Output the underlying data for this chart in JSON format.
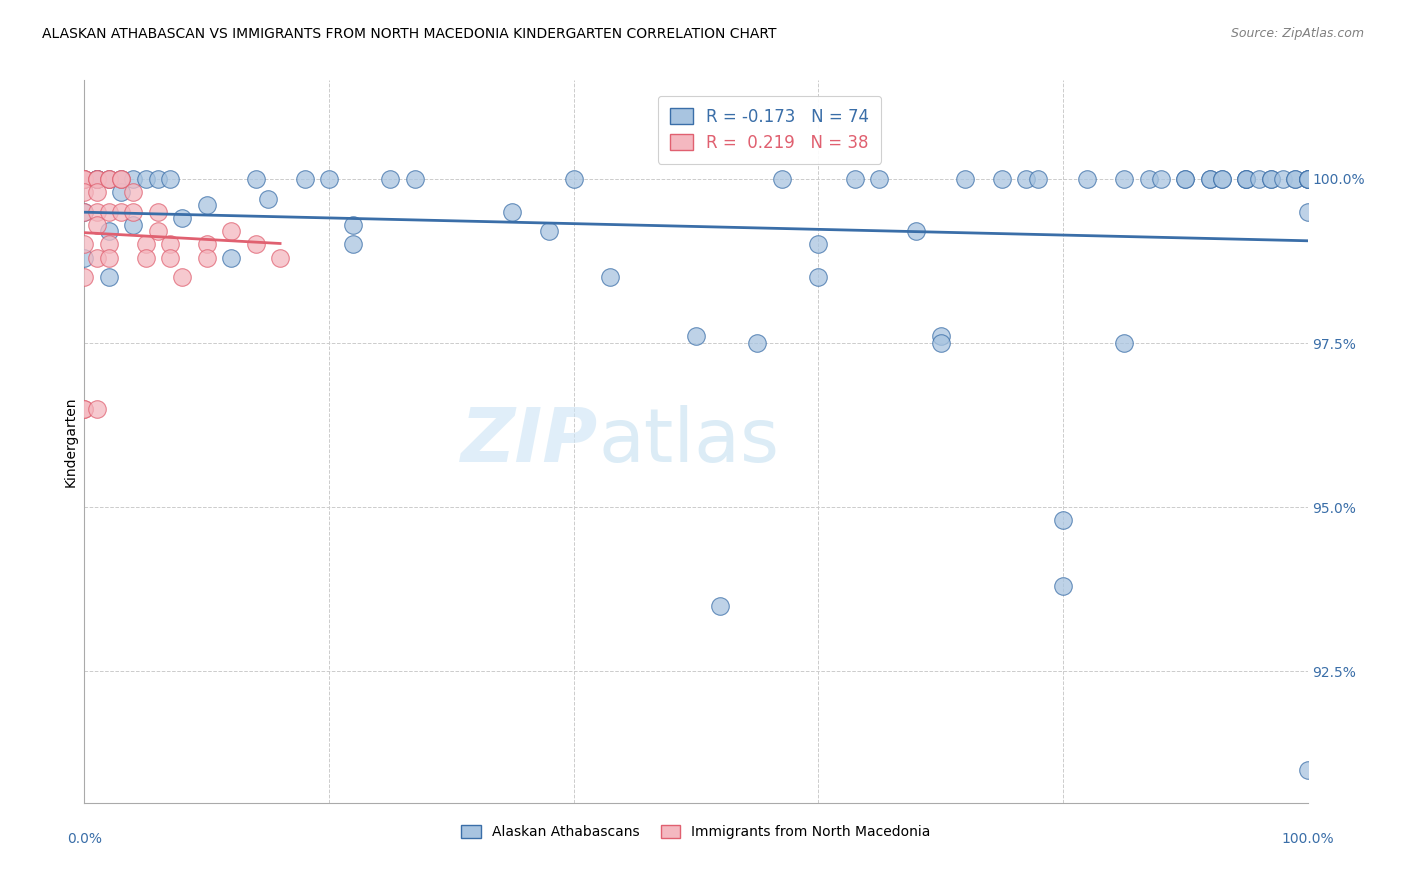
{
  "title": "ALASKAN ATHABASCAN VS IMMIGRANTS FROM NORTH MACEDONIA KINDERGARTEN CORRELATION CHART",
  "source": "Source: ZipAtlas.com",
  "ylabel": "Kindergarten",
  "xlim": [
    0.0,
    1.0
  ],
  "ylim": [
    90.5,
    101.5
  ],
  "legend_blue_label": "Alaskan Athabascans",
  "legend_pink_label": "Immigrants from North Macedonia",
  "R_blue": -0.173,
  "N_blue": 74,
  "R_pink": 0.219,
  "N_pink": 38,
  "blue_color": "#a8c4e0",
  "blue_line_color": "#3a6ea8",
  "pink_color": "#f4b8c0",
  "pink_line_color": "#e06070",
  "watermark_zip": "ZIP",
  "watermark_atlas": "atlas",
  "blue_scatter_x": [
    0.0,
    0.0,
    0.0,
    0.01,
    0.01,
    0.01,
    0.02,
    0.02,
    0.02,
    0.03,
    0.03,
    0.04,
    0.04,
    0.05,
    0.06,
    0.07,
    0.08,
    0.1,
    0.12,
    0.14,
    0.15,
    0.18,
    0.2,
    0.22,
    0.22,
    0.25,
    0.27,
    0.35,
    0.38,
    0.4,
    0.43,
    0.5,
    0.52,
    0.55,
    0.57,
    0.6,
    0.6,
    0.63,
    0.65,
    0.68,
    0.7,
    0.7,
    0.72,
    0.75,
    0.77,
    0.78,
    0.8,
    0.8,
    0.82,
    0.85,
    0.85,
    0.87,
    0.88,
    0.9,
    0.9,
    0.92,
    0.92,
    0.93,
    0.93,
    0.95,
    0.95,
    0.95,
    0.96,
    0.97,
    0.97,
    0.98,
    0.99,
    0.99,
    1.0,
    1.0,
    1.0,
    1.0,
    1.0,
    1.0
  ],
  "blue_scatter_y": [
    100.0,
    99.5,
    98.8,
    100.0,
    100.0,
    100.0,
    100.0,
    99.2,
    98.5,
    100.0,
    99.8,
    100.0,
    99.3,
    100.0,
    100.0,
    100.0,
    99.4,
    99.6,
    98.8,
    100.0,
    99.7,
    100.0,
    100.0,
    99.3,
    99.0,
    100.0,
    100.0,
    99.5,
    99.2,
    100.0,
    98.5,
    97.6,
    93.5,
    97.5,
    100.0,
    99.0,
    98.5,
    100.0,
    100.0,
    99.2,
    97.6,
    97.5,
    100.0,
    100.0,
    100.0,
    100.0,
    94.8,
    93.8,
    100.0,
    100.0,
    97.5,
    100.0,
    100.0,
    100.0,
    100.0,
    100.0,
    100.0,
    100.0,
    100.0,
    100.0,
    100.0,
    100.0,
    100.0,
    100.0,
    100.0,
    100.0,
    100.0,
    100.0,
    100.0,
    100.0,
    100.0,
    100.0,
    91.0,
    99.5
  ],
  "pink_scatter_x": [
    0.0,
    0.0,
    0.0,
    0.0,
    0.0,
    0.0,
    0.0,
    0.0,
    0.0,
    0.01,
    0.01,
    0.01,
    0.01,
    0.01,
    0.01,
    0.01,
    0.02,
    0.02,
    0.02,
    0.02,
    0.02,
    0.03,
    0.03,
    0.03,
    0.04,
    0.04,
    0.05,
    0.05,
    0.06,
    0.06,
    0.07,
    0.07,
    0.08,
    0.1,
    0.1,
    0.12,
    0.14,
    0.16
  ],
  "pink_scatter_y": [
    100.0,
    100.0,
    100.0,
    99.8,
    99.5,
    99.0,
    98.5,
    96.5,
    96.5,
    100.0,
    100.0,
    99.8,
    99.5,
    99.3,
    98.8,
    96.5,
    100.0,
    100.0,
    99.5,
    99.0,
    98.8,
    100.0,
    100.0,
    99.5,
    99.8,
    99.5,
    99.0,
    98.8,
    99.5,
    99.2,
    99.0,
    98.8,
    98.5,
    99.0,
    98.8,
    99.2,
    99.0,
    98.8
  ]
}
